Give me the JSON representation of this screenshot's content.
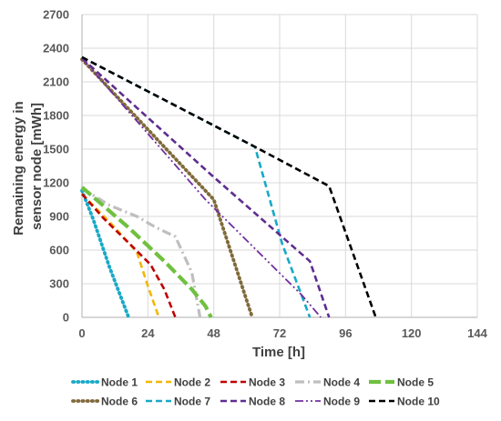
{
  "chart_data": {
    "type": "line",
    "title": "",
    "xlabel": "Time [h]",
    "ylabel_lines": [
      "Remaining energy in",
      "sensor node [mWh]"
    ],
    "xlim": [
      0,
      144
    ],
    "ylim": [
      0,
      2700
    ],
    "x_ticks": [
      0,
      24,
      48,
      72,
      96,
      120,
      144
    ],
    "y_ticks": [
      0,
      300,
      600,
      900,
      1200,
      1500,
      1800,
      2100,
      2400,
      2700
    ],
    "grid": true,
    "legend_position": "bottom",
    "series": [
      {
        "name": "Node 1",
        "color": "#17a9c7",
        "style": "dotted",
        "points": [
          [
            0,
            1130
          ],
          [
            4,
            880
          ],
          [
            10,
            450
          ],
          [
            17,
            0
          ]
        ]
      },
      {
        "name": "Node 2",
        "color": "#f2b705",
        "style": "dashed",
        "points": [
          [
            0,
            1100
          ],
          [
            12,
            800
          ],
          [
            20,
            580
          ],
          [
            24,
            280
          ],
          [
            28,
            0
          ]
        ]
      },
      {
        "name": "Node 3",
        "color": "#c00000",
        "style": "dashed",
        "points": [
          [
            0,
            1100
          ],
          [
            8,
            880
          ],
          [
            18,
            640
          ],
          [
            25,
            470
          ],
          [
            30,
            250
          ],
          [
            34,
            0
          ]
        ]
      },
      {
        "name": "Node 4",
        "color": "#bfbfbf",
        "style": "dashdot",
        "points": [
          [
            0,
            1150
          ],
          [
            10,
            1000
          ],
          [
            20,
            900
          ],
          [
            27,
            800
          ],
          [
            34,
            720
          ],
          [
            40,
            400
          ],
          [
            43,
            0
          ]
        ]
      },
      {
        "name": "Node 5",
        "color": "#70c040",
        "style": "longdash",
        "points": [
          [
            0,
            1160
          ],
          [
            17,
            800
          ],
          [
            30,
            500
          ],
          [
            40,
            250
          ],
          [
            45,
            100
          ],
          [
            47,
            0
          ]
        ]
      },
      {
        "name": "Node 6",
        "color": "#806a3a",
        "style": "dotted",
        "points": [
          [
            0,
            2300
          ],
          [
            48,
            1050
          ],
          [
            62,
            0
          ]
        ]
      },
      {
        "name": "Node 7",
        "color": "#17a9c7",
        "style": "dashed",
        "points": [
          [
            0,
            2320
          ],
          [
            63,
            1520
          ],
          [
            73,
            650
          ],
          [
            83,
            0
          ]
        ]
      },
      {
        "name": "Node 8",
        "color": "#5e2d8f",
        "style": "dashed",
        "points": [
          [
            0,
            2310
          ],
          [
            48,
            1250
          ],
          [
            83,
            500
          ],
          [
            90,
            0
          ]
        ]
      },
      {
        "name": "Node 9",
        "color": "#7030a0",
        "style": "dashdotdot",
        "points": [
          [
            0,
            2310
          ],
          [
            45,
            1050
          ],
          [
            80,
            200
          ],
          [
            87,
            0
          ]
        ]
      },
      {
        "name": "Node 10",
        "color": "#000000",
        "style": "dashed",
        "points": [
          [
            0,
            2320
          ],
          [
            63,
            1520
          ],
          [
            90,
            1170
          ],
          [
            107,
            0
          ]
        ]
      }
    ]
  }
}
